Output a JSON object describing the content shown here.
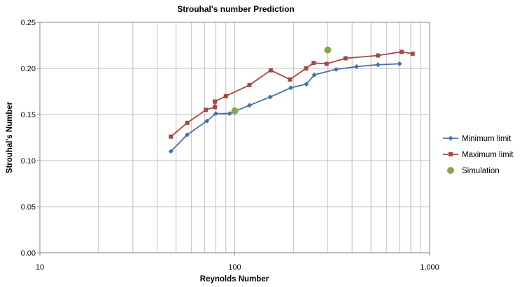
{
  "chart_data": {
    "type": "scatter",
    "title": "Strouhal's number Prediction",
    "xlabel": "Reynolds Number",
    "ylabel": "Strouhal's Number",
    "xscale": "log",
    "xlim": [
      10,
      1000
    ],
    "ylim": [
      0,
      0.25
    ],
    "x_ticks": [
      10,
      100,
      1000
    ],
    "x_tick_labels": [
      "10",
      "100",
      "1,000"
    ],
    "y_ticks": [
      0,
      0.05,
      0.1,
      0.15,
      0.2,
      0.25
    ],
    "y_tick_labels": [
      "0.00",
      "0.05",
      "0.10",
      "0.15",
      "0.20",
      "0.25"
    ],
    "grid": "major and minor vertical (log), major horizontal",
    "legend_position": "right",
    "series": [
      {
        "name": "Minimum limit",
        "style": "line-with-diamond-markers",
        "color": "#4572A7",
        "points": [
          {
            "x": 47,
            "y": 0.11
          },
          {
            "x": 57,
            "y": 0.128
          },
          {
            "x": 72,
            "y": 0.143
          },
          {
            "x": 80,
            "y": 0.151
          },
          {
            "x": 94,
            "y": 0.151
          },
          {
            "x": 119,
            "y": 0.16
          },
          {
            "x": 152,
            "y": 0.169
          },
          {
            "x": 194,
            "y": 0.179
          },
          {
            "x": 233,
            "y": 0.183
          },
          {
            "x": 256,
            "y": 0.193
          },
          {
            "x": 331,
            "y": 0.199
          },
          {
            "x": 422,
            "y": 0.202
          },
          {
            "x": 543,
            "y": 0.204
          },
          {
            "x": 701,
            "y": 0.205
          }
        ]
      },
      {
        "name": "Maximum limit",
        "style": "line-with-square-markers",
        "color": "#AA4643",
        "points": [
          {
            "x": 47,
            "y": 0.126
          },
          {
            "x": 57,
            "y": 0.141
          },
          {
            "x": 71,
            "y": 0.155
          },
          {
            "x": 79,
            "y": 0.158
          },
          {
            "x": 79,
            "y": 0.164
          },
          {
            "x": 90,
            "y": 0.17
          },
          {
            "x": 119,
            "y": 0.182
          },
          {
            "x": 153,
            "y": 0.198
          },
          {
            "x": 192,
            "y": 0.188
          },
          {
            "x": 232,
            "y": 0.2
          },
          {
            "x": 254,
            "y": 0.206
          },
          {
            "x": 296,
            "y": 0.205
          },
          {
            "x": 370,
            "y": 0.211
          },
          {
            "x": 543,
            "y": 0.214
          },
          {
            "x": 718,
            "y": 0.218
          },
          {
            "x": 818,
            "y": 0.216
          }
        ]
      },
      {
        "name": "Simulation",
        "style": "markers-only-circle",
        "color": "#89A54E",
        "points": [
          {
            "x": 100,
            "y": 0.154
          },
          {
            "x": 300,
            "y": 0.22
          }
        ]
      }
    ]
  }
}
